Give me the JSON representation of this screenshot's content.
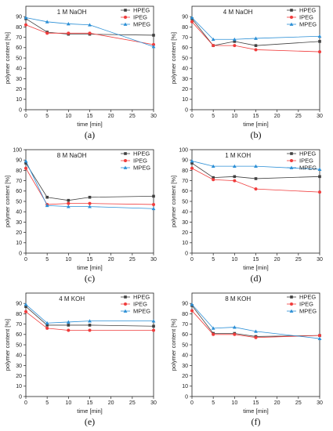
{
  "chart_data": [
    {
      "type": "line",
      "caption": "(a)",
      "annotation": "1 M NaOH",
      "xlabel": "time [min]",
      "ylabel": "polymer content [%]",
      "xlim": [
        0,
        30
      ],
      "ylim": [
        0,
        100
      ],
      "xticks": [
        0,
        5,
        10,
        15,
        20,
        25,
        30
      ],
      "yticks": [
        0,
        10,
        20,
        30,
        40,
        50,
        60,
        70,
        80,
        90
      ],
      "legend_position": "top-right",
      "x": [
        0,
        5,
        10,
        15,
        30
      ],
      "series": [
        {
          "name": "HPEG",
          "color": "#404040",
          "marker": "square",
          "values": [
            88,
            75,
            73,
            73,
            72
          ]
        },
        {
          "name": "IPEG",
          "color": "#f03c3c",
          "marker": "circle",
          "values": [
            82,
            74,
            74,
            74,
            63
          ]
        },
        {
          "name": "MPEG",
          "color": "#2b8fd6",
          "marker": "triangle",
          "values": [
            89,
            85,
            83,
            82,
            61
          ]
        }
      ]
    },
    {
      "type": "line",
      "caption": "(b)",
      "annotation": "4 M NaOH",
      "xlabel": "time [min]",
      "ylabel": "polymer content [%]",
      "xlim": [
        0,
        30
      ],
      "ylim": [
        0,
        100
      ],
      "xticks": [
        0,
        5,
        10,
        15,
        20,
        25,
        30
      ],
      "yticks": [
        0,
        10,
        20,
        30,
        40,
        50,
        60,
        70,
        80,
        90
      ],
      "legend_position": "top-right",
      "x": [
        0,
        5,
        10,
        15,
        30
      ],
      "series": [
        {
          "name": "HPEG",
          "color": "#404040",
          "marker": "square",
          "values": [
            88,
            62,
            66,
            62,
            66
          ]
        },
        {
          "name": "IPEG",
          "color": "#f03c3c",
          "marker": "circle",
          "values": [
            85,
            62,
            62,
            58,
            56
          ]
        },
        {
          "name": "MPEG",
          "color": "#2b8fd6",
          "marker": "triangle",
          "values": [
            89,
            68,
            68,
            69,
            71
          ]
        }
      ]
    },
    {
      "type": "line",
      "caption": "(c)",
      "annotation": "8 M NaOH",
      "xlabel": "time [min]",
      "ylabel": "polymer content [%]",
      "xlim": [
        0,
        30
      ],
      "ylim": [
        0,
        100
      ],
      "xticks": [
        0,
        5,
        10,
        15,
        20,
        25,
        30
      ],
      "yticks": [
        0,
        10,
        20,
        30,
        40,
        50,
        60,
        70,
        80,
        90,
        100
      ],
      "legend_position": "top-right",
      "x": [
        0,
        5,
        10,
        15,
        30
      ],
      "series": [
        {
          "name": "HPEG",
          "color": "#404040",
          "marker": "square",
          "values": [
            87,
            54,
            51,
            54,
            55
          ]
        },
        {
          "name": "IPEG",
          "color": "#f03c3c",
          "marker": "circle",
          "values": [
            82,
            47,
            48,
            48,
            47
          ]
        },
        {
          "name": "MPEG",
          "color": "#2b8fd6",
          "marker": "triangle",
          "values": [
            89,
            46,
            45,
            45,
            43
          ]
        }
      ]
    },
    {
      "type": "line",
      "caption": "(d)",
      "annotation": "1 M KOH",
      "xlabel": "time [min]",
      "ylabel": "polymer content [%]",
      "xlim": [
        0,
        30
      ],
      "ylim": [
        0,
        100
      ],
      "xticks": [
        0,
        5,
        10,
        15,
        20,
        25,
        30
      ],
      "yticks": [
        0,
        10,
        20,
        30,
        40,
        50,
        60,
        70,
        80,
        90,
        100
      ],
      "legend_position": "top-right",
      "x": [
        0,
        5,
        10,
        15,
        30
      ],
      "series": [
        {
          "name": "HPEG",
          "color": "#404040",
          "marker": "square",
          "values": [
            87,
            73,
            74,
            72,
            74
          ]
        },
        {
          "name": "IPEG",
          "color": "#f03c3c",
          "marker": "circle",
          "values": [
            82,
            71,
            70,
            62,
            59
          ]
        },
        {
          "name": "MPEG",
          "color": "#2b8fd6",
          "marker": "triangle",
          "values": [
            89,
            84,
            84,
            84,
            81
          ]
        }
      ]
    },
    {
      "type": "line",
      "caption": "(e)",
      "annotation": "4 M KOH",
      "xlabel": "time [min]",
      "ylabel": "polymer content [%]",
      "xlim": [
        0,
        30
      ],
      "ylim": [
        0,
        100
      ],
      "xticks": [
        0,
        5,
        10,
        15,
        20,
        25,
        30
      ],
      "yticks": [
        0,
        10,
        20,
        30,
        40,
        50,
        60,
        70,
        80,
        90
      ],
      "legend_position": "top-right",
      "x": [
        0,
        5,
        10,
        15,
        30
      ],
      "series": [
        {
          "name": "HPEG",
          "color": "#404040",
          "marker": "square",
          "values": [
            87,
            69,
            69,
            69,
            68
          ]
        },
        {
          "name": "IPEG",
          "color": "#f03c3c",
          "marker": "circle",
          "values": [
            82,
            66,
            64,
            64,
            64
          ]
        },
        {
          "name": "MPEG",
          "color": "#2b8fd6",
          "marker": "triangle",
          "values": [
            89,
            71,
            72,
            73,
            73
          ]
        }
      ]
    },
    {
      "type": "line",
      "caption": "(f)",
      "annotation": "8 M KOH",
      "xlabel": "time [min]",
      "ylabel": "polymer content [%]",
      "xlim": [
        0,
        30
      ],
      "ylim": [
        0,
        100
      ],
      "xticks": [
        0,
        5,
        10,
        15,
        20,
        25,
        30
      ],
      "yticks": [
        0,
        10,
        20,
        30,
        40,
        50,
        60,
        70,
        80,
        90
      ],
      "legend_position": "top-right",
      "x": [
        0,
        5,
        10,
        15,
        30
      ],
      "series": [
        {
          "name": "HPEG",
          "color": "#404040",
          "marker": "square",
          "values": [
            88,
            61,
            61,
            58,
            59
          ]
        },
        {
          "name": "IPEG",
          "color": "#f03c3c",
          "marker": "circle",
          "values": [
            83,
            60,
            60,
            57,
            59
          ]
        },
        {
          "name": "MPEG",
          "color": "#2b8fd6",
          "marker": "triangle",
          "values": [
            89,
            66,
            67,
            63,
            56
          ]
        }
      ]
    }
  ]
}
